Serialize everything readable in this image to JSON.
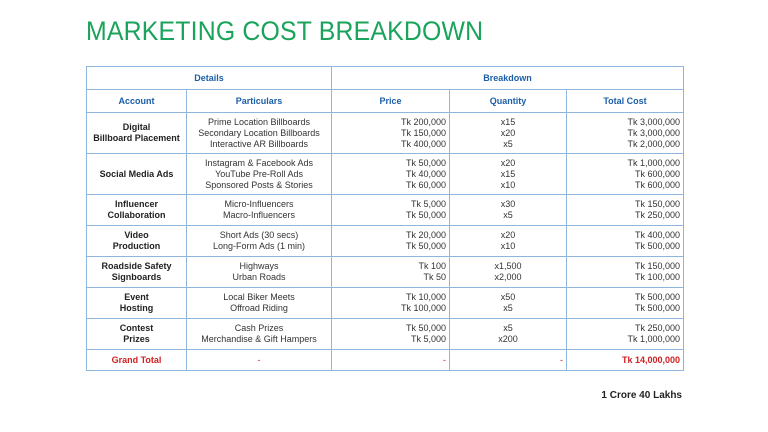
{
  "title": "MARKETING COST BREAKDOWN",
  "groups": {
    "details": "Details",
    "breakdown": "Breakdown"
  },
  "headers": {
    "account": "Account",
    "particulars": "Particulars",
    "price": "Price",
    "quantity": "Quantity",
    "total_cost": "Total Cost"
  },
  "rows": [
    {
      "account": [
        "Digital",
        "Billboard Placement"
      ],
      "particulars": [
        "Prime Location Billboards",
        "Secondary Location Billboards",
        "Interactive AR Billboards"
      ],
      "prices": [
        "Tk 200,000",
        "Tk 150,000",
        "Tk 400,000"
      ],
      "quantities": [
        "x15",
        "x20",
        "x5"
      ],
      "totals": [
        "Tk 3,000,000",
        "Tk 3,000,000",
        "Tk 2,000,000"
      ]
    },
    {
      "account": [
        "Social Media Ads"
      ],
      "particulars": [
        "Instagram & Facebook Ads",
        "YouTube Pre-Roll Ads",
        "Sponsored Posts & Stories"
      ],
      "prices": [
        "Tk 50,000",
        "Tk 40,000",
        "Tk 60,000"
      ],
      "quantities": [
        "x20",
        "x15",
        "x10"
      ],
      "totals": [
        "Tk 1,000,000",
        "Tk 600,000",
        "Tk 600,000"
      ]
    },
    {
      "account": [
        "Influencer",
        "Collaboration"
      ],
      "particulars": [
        "Micro-Influencers",
        "Macro-Influencers"
      ],
      "prices": [
        "Tk 5,000",
        "Tk 50,000"
      ],
      "quantities": [
        "x30",
        "x5"
      ],
      "totals": [
        "Tk 150,000",
        "Tk 250,000"
      ]
    },
    {
      "account": [
        "Video",
        "Production"
      ],
      "particulars": [
        "Short Ads (30 secs)",
        "Long-Form Ads (1 min)"
      ],
      "prices": [
        "Tk 20,000",
        "Tk 50,000"
      ],
      "quantities": [
        "x20",
        "x10"
      ],
      "totals": [
        "Tk 400,000",
        "Tk 500,000"
      ]
    },
    {
      "account": [
        "Roadside Safety",
        "Signboards"
      ],
      "particulars": [
        "Highways",
        "Urban Roads"
      ],
      "prices": [
        "Tk 100",
        "Tk 50"
      ],
      "quantities": [
        "x1,500",
        "x2,000"
      ],
      "totals": [
        "Tk 150,000",
        "Tk 100,000"
      ]
    },
    {
      "account": [
        "Event",
        "Hosting"
      ],
      "particulars": [
        "Local Biker Meets",
        "Offroad Riding"
      ],
      "prices": [
        "Tk 10,000",
        "Tk 100,000"
      ],
      "quantities": [
        "x50",
        "x5"
      ],
      "totals": [
        "Tk 500,000",
        "Tk 500,000"
      ]
    },
    {
      "account": [
        "Contest",
        "Prizes"
      ],
      "particulars": [
        "Cash Prizes",
        "Merchandise & Gift Hampers"
      ],
      "prices": [
        "Tk 50,000",
        "Tk 5,000"
      ],
      "quantities": [
        "x5",
        "x200"
      ],
      "totals": [
        "Tk 250,000",
        "Tk 1,000,000"
      ]
    }
  ],
  "grand_total": {
    "label": "Grand Total",
    "particulars": "-",
    "price": "-",
    "quantity": "-",
    "total": "Tk 14,000,000"
  },
  "footnote": "1 Crore 40 Lakhs",
  "colors": {
    "title": "#1aa35a",
    "header": "#1c5ea8",
    "grand_total": "#d02020",
    "border": "#8fb6dc"
  }
}
